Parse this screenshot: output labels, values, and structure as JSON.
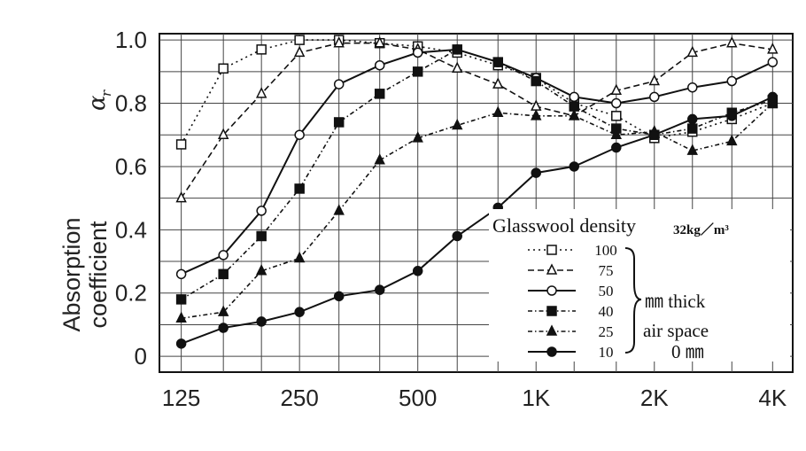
{
  "chart_data": {
    "type": "line",
    "ylabel_line1": "Absorption",
    "ylabel_line2": "coefficient",
    "ylabel_symbol": "α",
    "ylabel_subscript": "r",
    "x": [
      125,
      160,
      200,
      250,
      315,
      400,
      500,
      630,
      800,
      1000,
      1250,
      1600,
      2000,
      2500,
      3150,
      4000
    ],
    "x_ticks": [
      125,
      250,
      500,
      1000,
      2000,
      4000
    ],
    "x_tick_labels": [
      "125",
      "250",
      "500",
      "1K",
      "2K",
      "4K"
    ],
    "y_ticks": [
      0,
      0.2,
      0.4,
      0.6,
      0.8,
      1.0
    ],
    "y_tick_labels": [
      "0",
      "0.2",
      "0.4",
      "0.6",
      "0.8",
      "1.0"
    ],
    "xlim": [
      110,
      4500
    ],
    "ylim": [
      -0.05,
      1.02
    ],
    "x_scale": "log",
    "grid": true,
    "legend": {
      "title": "Glasswool density",
      "unit": "32kg／m³",
      "note_thick": "㎜ thick",
      "note_air": "air space",
      "note_zero": "0 ㎜",
      "placement": "lower-right"
    },
    "series": [
      {
        "name": "100",
        "marker": "open-square",
        "dash": "dotted",
        "values": [
          0.67,
          0.91,
          0.97,
          1.0,
          1.0,
          0.99,
          0.98,
          0.96,
          0.92,
          0.88,
          0.8,
          0.76,
          0.69,
          0.71,
          0.75,
          0.8
        ]
      },
      {
        "name": "75",
        "marker": "open-triangle",
        "dash": "dashed",
        "values": [
          0.5,
          0.7,
          0.83,
          0.96,
          0.99,
          0.99,
          0.97,
          0.91,
          0.86,
          0.79,
          0.76,
          0.84,
          0.87,
          0.96,
          0.99,
          0.97
        ]
      },
      {
        "name": "50",
        "marker": "open-circle",
        "dash": "solid",
        "values": [
          0.26,
          0.32,
          0.46,
          0.7,
          0.86,
          0.92,
          0.96,
          0.97,
          0.93,
          0.88,
          0.82,
          0.8,
          0.82,
          0.85,
          0.87,
          0.93
        ]
      },
      {
        "name": "40",
        "marker": "filled-square",
        "dash": "dash-dot",
        "values": [
          0.18,
          0.26,
          0.38,
          0.53,
          0.74,
          0.83,
          0.9,
          0.97,
          0.93,
          0.87,
          0.79,
          0.72,
          0.7,
          0.72,
          0.77,
          0.81
        ]
      },
      {
        "name": "25",
        "marker": "filled-triangle",
        "dash": "dash-dot",
        "values": [
          0.12,
          0.14,
          0.27,
          0.31,
          0.46,
          0.62,
          0.69,
          0.73,
          0.77,
          0.76,
          0.76,
          0.7,
          0.71,
          0.65,
          0.68,
          0.8
        ]
      },
      {
        "name": "10",
        "marker": "filled-circle",
        "dash": "solid",
        "values": [
          0.04,
          0.09,
          0.11,
          0.14,
          0.19,
          0.21,
          0.27,
          0.38,
          0.47,
          0.58,
          0.6,
          0.66,
          0.7,
          0.75,
          0.76,
          0.82
        ]
      }
    ]
  }
}
